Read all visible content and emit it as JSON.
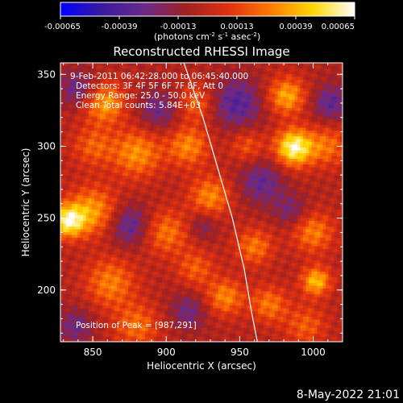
{
  "chart_data": {
    "type": "heatmap",
    "title": "Reconstructed RHESSI Image",
    "colorbar": {
      "ticks": [
        "-0.00065",
        "-0.00039",
        "-0.00013",
        "0.00013",
        "0.00039",
        "0.00065"
      ],
      "range": [
        -0.00065,
        0.00065
      ],
      "unit_parts": [
        "(photons cm",
        "-2",
        " s",
        "-1",
        " asec",
        "-2",
        ")"
      ],
      "colormap": [
        "#0000ff",
        "#3a1a9e",
        "#6a2a8a",
        "#a02020",
        "#e03010",
        "#ff7a00",
        "#ffd700",
        "#ffffff"
      ]
    },
    "xlabel": "Heliocentric X (arcsec)",
    "ylabel": "Heliocentric Y (arcsec)",
    "xlim": [
      828,
      1020
    ],
    "ylim": [
      164,
      358
    ],
    "xticks": [
      "850",
      "900",
      "950",
      "1000"
    ],
    "yticks": [
      "200",
      "250",
      "300",
      "350"
    ],
    "annotations": [
      "9-Feb-2011 06:42:28.000 to 06:45:40.000",
      "Detectors: 3F 4F 5F 6F 7F 8F, Att 0",
      "Energy Range: 25.0 - 50.0 keV",
      "Clean     Total counts: 5.84E+03"
    ],
    "peak_label": "Position of Peak = [987,291]",
    "peak": [
      987,
      291
    ],
    "limb_points": [
      [
        912,
        358
      ],
      [
        925,
        320
      ],
      [
        935,
        285
      ],
      [
        945,
        250
      ],
      [
        953,
        215
      ],
      [
        958,
        185
      ],
      [
        962,
        164
      ]
    ],
    "hotspots": [
      {
        "x": 987,
        "y": 299,
        "v": 0.00065,
        "s": 9
      },
      {
        "x": 833,
        "y": 248,
        "v": 0.00058,
        "s": 8
      },
      {
        "x": 1002,
        "y": 206,
        "v": 0.00046,
        "s": 7
      },
      {
        "x": 982,
        "y": 335,
        "v": 0.00042,
        "s": 9
      },
      {
        "x": 858,
        "y": 330,
        "v": 0.0004,
        "s": 10
      },
      {
        "x": 880,
        "y": 295,
        "v": 0.00036,
        "s": 12
      },
      {
        "x": 915,
        "y": 300,
        "v": 0.00034,
        "s": 10
      },
      {
        "x": 850,
        "y": 255,
        "v": 0.00038,
        "s": 12
      },
      {
        "x": 900,
        "y": 240,
        "v": 0.0003,
        "s": 11
      },
      {
        "x": 930,
        "y": 265,
        "v": 0.00034,
        "s": 10
      },
      {
        "x": 960,
        "y": 230,
        "v": 0.0003,
        "s": 9
      },
      {
        "x": 940,
        "y": 195,
        "v": 0.00034,
        "s": 9
      },
      {
        "x": 970,
        "y": 190,
        "v": 0.0003,
        "s": 9
      },
      {
        "x": 1000,
        "y": 240,
        "v": 0.00032,
        "s": 10
      },
      {
        "x": 1010,
        "y": 300,
        "v": 0.00028,
        "s": 10
      },
      {
        "x": 862,
        "y": 205,
        "v": 0.00032,
        "s": 12
      },
      {
        "x": 880,
        "y": 175,
        "v": 0.00028,
        "s": 11
      },
      {
        "x": 920,
        "y": 330,
        "v": 0.00026,
        "s": 9
      },
      {
        "x": 955,
        "y": 300,
        "v": 0.00022,
        "s": 8
      },
      {
        "x": 850,
        "y": 300,
        "v": 0.00024,
        "s": 10
      },
      {
        "x": 995,
        "y": 175,
        "v": 0.00024,
        "s": 10
      },
      {
        "x": 920,
        "y": 215,
        "v": 0.00024,
        "s": 9
      },
      {
        "x": 875,
        "y": 245,
        "v": -0.0003,
        "s": 10
      },
      {
        "x": 895,
        "y": 325,
        "v": -0.00024,
        "s": 10
      },
      {
        "x": 840,
        "y": 340,
        "v": -0.00026,
        "s": 9
      },
      {
        "x": 948,
        "y": 330,
        "v": -0.00032,
        "s": 12
      },
      {
        "x": 965,
        "y": 275,
        "v": -0.00026,
        "s": 11
      },
      {
        "x": 915,
        "y": 185,
        "v": -0.00022,
        "s": 9
      },
      {
        "x": 1012,
        "y": 330,
        "v": -0.00028,
        "s": 9
      },
      {
        "x": 985,
        "y": 255,
        "v": -0.0002,
        "s": 8
      },
      {
        "x": 838,
        "y": 175,
        "v": -0.00022,
        "s": 9
      },
      {
        "x": 925,
        "y": 245,
        "v": -0.00018,
        "s": 7
      }
    ]
  },
  "footer": {
    "date": "8-May-2022 21:01"
  }
}
